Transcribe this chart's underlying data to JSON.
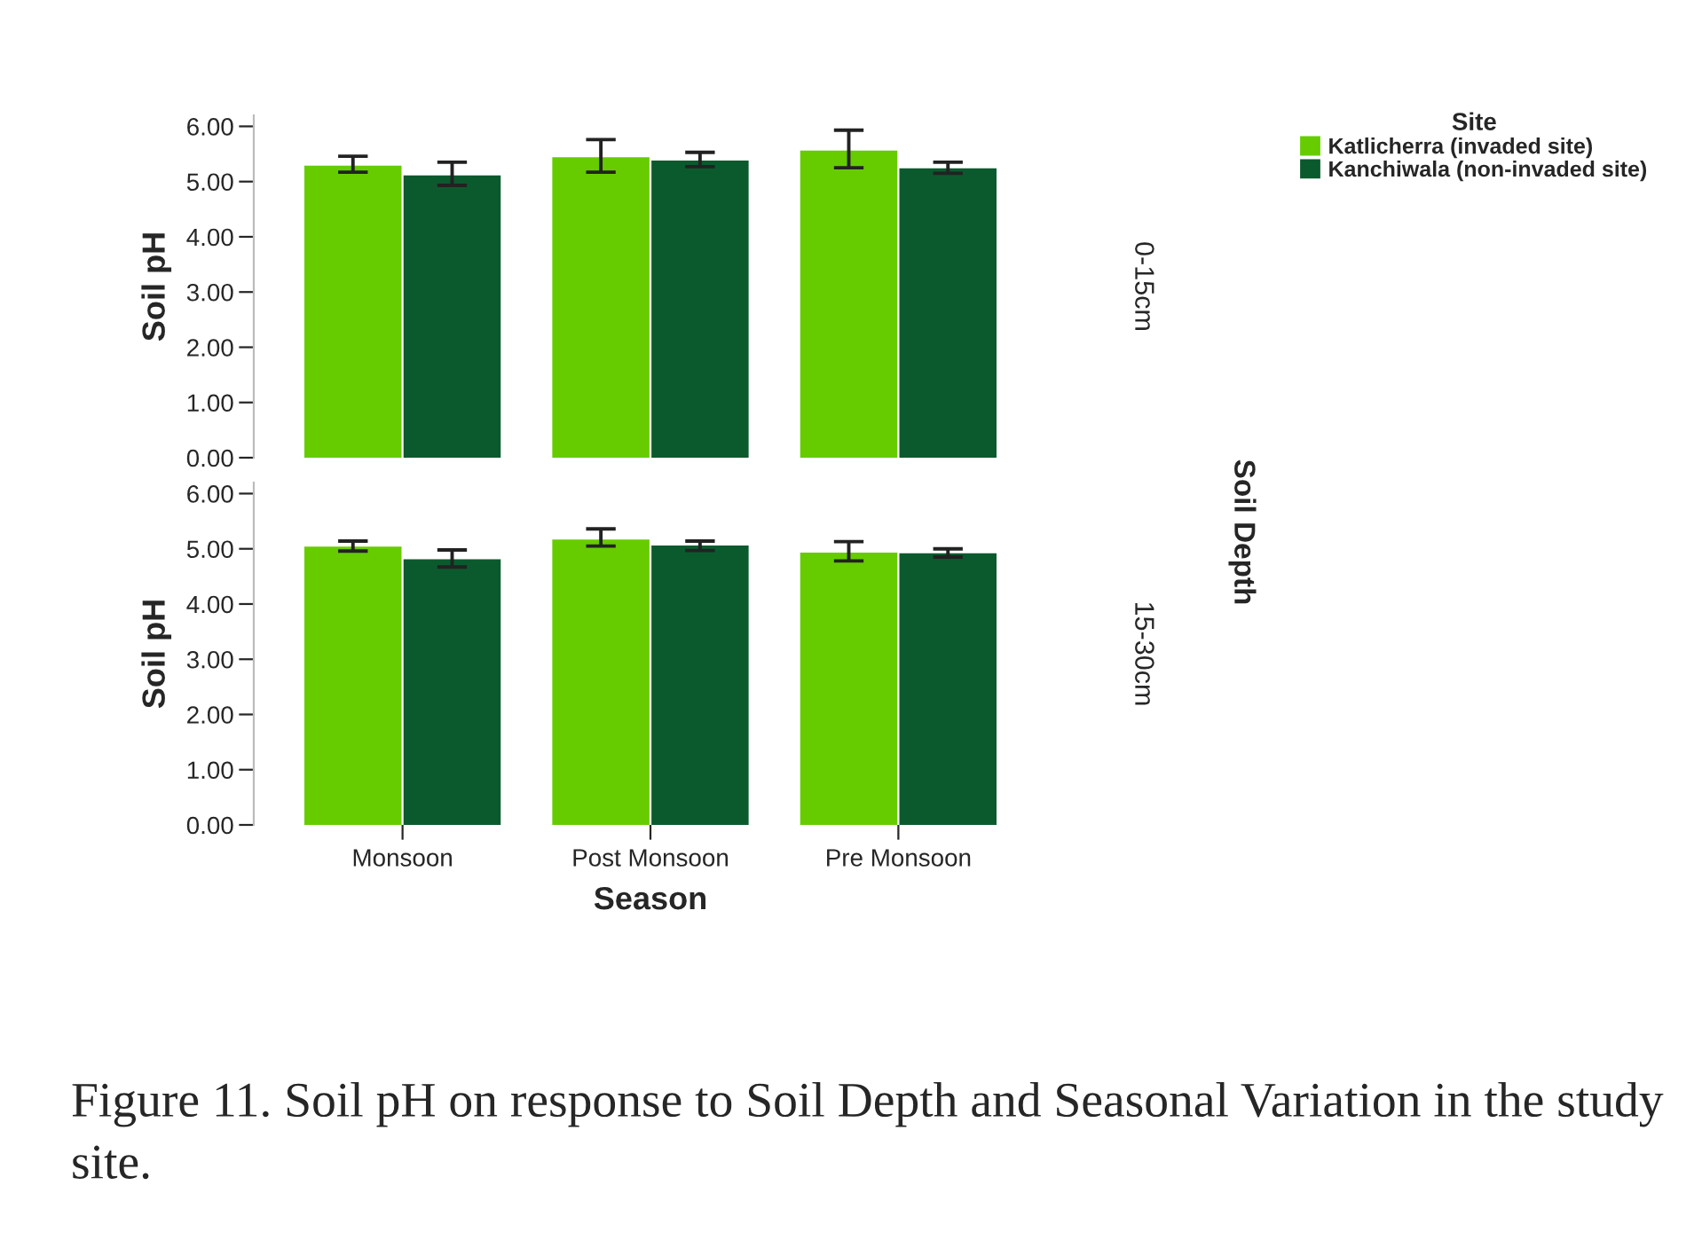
{
  "chart_data": [
    {
      "type": "bar",
      "categories": [
        null,
        null,
        null
      ],
      "ylabel": "Soil pH",
      "ylim": [
        0,
        6.2
      ],
      "yticks": [
        {
          "value": 0,
          "label": "0.00"
        },
        {
          "value": 1,
          "label": "1.00"
        },
        {
          "value": 2,
          "label": "2.00"
        },
        {
          "value": 3,
          "label": "3.00"
        },
        {
          "value": 4,
          "label": "4.00"
        },
        {
          "value": 5,
          "label": "5.00"
        },
        {
          "value": 6,
          "label": "6.00"
        }
      ],
      "tick_labels": "y",
      "legend": "top right",
      "legend_title": "Site",
      "grid": false,
      "series": [
        {
          "name": "Katlicherra (invaded site)",
          "color": "#66cc00",
          "values": [
            5.29,
            5.44,
            5.56
          ],
          "errors": [
            [
              5.17,
              5.46
            ],
            [
              5.17,
              5.76
            ],
            [
              5.25,
              5.93
            ]
          ]
        },
        {
          "name": "Kanchiwala (non-invaded site)",
          "color": "#0b5a2e",
          "values": [
            5.11,
            5.38,
            5.24
          ],
          "errors": [
            [
              4.93,
              5.35
            ],
            [
              5.27,
              5.53
            ],
            [
              5.15,
              5.35
            ]
          ]
        }
      ],
      "annotations": [
        "0-15cm",
        "Soil Depth"
      ]
    },
    {
      "type": "bar",
      "categories": [
        "Monsoon",
        "Post Monsoon",
        "Pre Monsoon"
      ],
      "xlabel": "Season",
      "ylabel": "Soil pH",
      "ylim": [
        0,
        6.2
      ],
      "yticks": [
        {
          "value": 0,
          "label": "0.00"
        },
        {
          "value": 1,
          "label": "1.00"
        },
        {
          "value": 2,
          "label": "2.00"
        },
        {
          "value": 3,
          "label": "3.00"
        },
        {
          "value": 4,
          "label": "4.00"
        },
        {
          "value": 5,
          "label": "5.00"
        },
        {
          "value": 6,
          "label": "6.00"
        }
      ],
      "grid": false,
      "series": [
        {
          "color": "#66cc00",
          "values": [
            5.04,
            5.17,
            4.93
          ],
          "errors": [
            [
              4.96,
              5.14
            ],
            [
              5.05,
              5.36
            ],
            [
              4.78,
              5.13
            ]
          ]
        },
        {
          "color": "#0b5a2e",
          "values": [
            4.81,
            5.06,
            4.92
          ],
          "errors": [
            [
              4.67,
              4.98
            ],
            [
              4.97,
              5.14
            ],
            [
              4.85,
              5.0
            ]
          ]
        }
      ],
      "annotations": [
        "15-30cm",
        "Figure 11. Soil pH on response to Soil Depth and Seasonal Variation in the study site."
      ]
    }
  ]
}
